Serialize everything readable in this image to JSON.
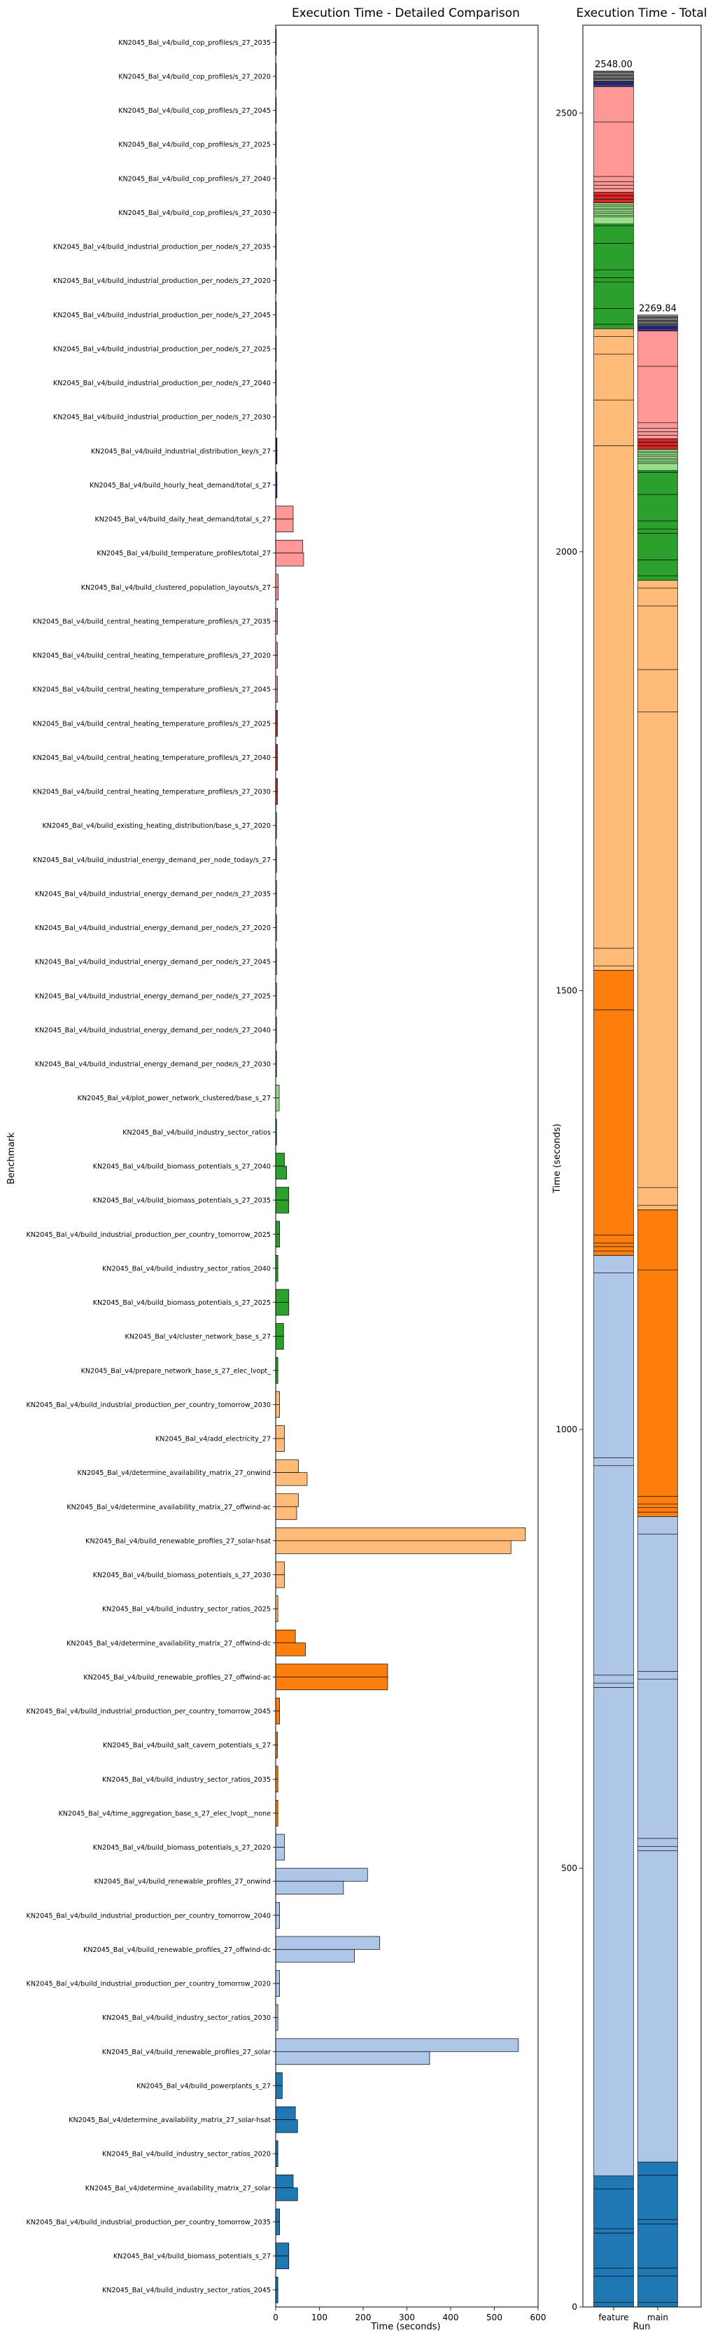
{
  "chart_data": [
    {
      "type": "bar",
      "orientation": "horizontal",
      "title": "Execution Time - Detailed Comparison",
      "xlabel": "Time (seconds)",
      "ylabel": "Benchmark",
      "xlim": [
        0,
        600
      ],
      "xticks": [
        "0",
        "100",
        "200",
        "300",
        "400",
        "500",
        "600"
      ],
      "xtick_values": [
        0,
        100,
        200,
        300,
        400,
        500,
        600
      ],
      "series_names": [
        "feature",
        "main"
      ],
      "rows": [
        {
          "label": "KN2045_Bal_v4/build_cop_profiles/s_27_2035",
          "feature": 1.0,
          "main": 1.0,
          "color": "#d3d3d3"
        },
        {
          "label": "KN2045_Bal_v4/build_cop_profiles/s_27_2020",
          "feature": 1.0,
          "main": 1.0,
          "color": "#d3d3d3"
        },
        {
          "label": "KN2045_Bal_v4/build_cop_profiles/s_27_2045",
          "feature": 1.0,
          "main": 1.0,
          "color": "#d3d3d3"
        },
        {
          "label": "KN2045_Bal_v4/build_cop_profiles/s_27_2025",
          "feature": 1.0,
          "main": 1.0,
          "color": "#d3d3d3"
        },
        {
          "label": "KN2045_Bal_v4/build_cop_profiles/s_27_2040",
          "feature": 1.0,
          "main": 1.0,
          "color": "#d3d3d3"
        },
        {
          "label": "KN2045_Bal_v4/build_cop_profiles/s_27_2030",
          "feature": 1.0,
          "main": 1.0,
          "color": "#d3d3d3"
        },
        {
          "label": "KN2045_Bal_v4/build_industrial_production_per_node/s_27_2035",
          "feature": 1.0,
          "main": 1.0,
          "color": "#c7c7c7"
        },
        {
          "label": "KN2045_Bal_v4/build_industrial_production_per_node/s_27_2020",
          "feature": 1.0,
          "main": 1.0,
          "color": "#c7c7c7"
        },
        {
          "label": "KN2045_Bal_v4/build_industrial_production_per_node/s_27_2045",
          "feature": 1.0,
          "main": 1.0,
          "color": "#c7c7c7"
        },
        {
          "label": "KN2045_Bal_v4/build_industrial_production_per_node/s_27_2025",
          "feature": 1.0,
          "main": 1.0,
          "color": "#c7c7c7"
        },
        {
          "label": "KN2045_Bal_v4/build_industrial_production_per_node/s_27_2040",
          "feature": 1.0,
          "main": 1.0,
          "color": "#c7c7c7"
        },
        {
          "label": "KN2045_Bal_v4/build_industrial_production_per_node/s_27_2030",
          "feature": 1.0,
          "main": 1.0,
          "color": "#c7c7c7"
        },
        {
          "label": "KN2045_Bal_v4/build_industrial_distribution_key/s_27",
          "feature": 3.0,
          "main": 3.0,
          "color": "#2c2a78"
        },
        {
          "label": "KN2045_Bal_v4/build_hourly_heat_demand/total_s_27",
          "feature": 3.0,
          "main": 3.0,
          "color": "#3a3a8c"
        },
        {
          "label": "KN2045_Bal_v4/build_daily_heat_demand/total_s_27",
          "feature": 40.0,
          "main": 40.0,
          "color": "#ff9896"
        },
        {
          "label": "KN2045_Bal_v4/build_temperature_profiles/total_27",
          "feature": 62.0,
          "main": 64.0,
          "color": "#ff9896"
        },
        {
          "label": "KN2045_Bal_v4/build_clustered_population_layouts/s_27",
          "feature": 6.0,
          "main": 6.0,
          "color": "#ff9896"
        },
        {
          "label": "KN2045_Bal_v4/build_central_heating_temperature_profiles/s_27_2035",
          "feature": 4.0,
          "main": 4.0,
          "color": "#ff9896"
        },
        {
          "label": "KN2045_Bal_v4/build_central_heating_temperature_profiles/s_27_2020",
          "feature": 4.0,
          "main": 4.0,
          "color": "#ff9896"
        },
        {
          "label": "KN2045_Bal_v4/build_central_heating_temperature_profiles/s_27_2045",
          "feature": 4.0,
          "main": 4.0,
          "color": "#ff9896"
        },
        {
          "label": "KN2045_Bal_v4/build_central_heating_temperature_profiles/s_27_2025",
          "feature": 4.0,
          "main": 4.0,
          "color": "#d62728"
        },
        {
          "label": "KN2045_Bal_v4/build_central_heating_temperature_profiles/s_27_2040",
          "feature": 4.0,
          "main": 4.0,
          "color": "#d62728"
        },
        {
          "label": "KN2045_Bal_v4/build_central_heating_temperature_profiles/s_27_2030",
          "feature": 4.0,
          "main": 4.0,
          "color": "#d62728"
        },
        {
          "label": "KN2045_Bal_v4/build_existing_heating_distribution/base_s_27_2020",
          "feature": 2.0,
          "main": 2.0,
          "color": "#98df8a"
        },
        {
          "label": "KN2045_Bal_v4/build_industrial_energy_demand_per_node_today/s_27",
          "feature": 2.0,
          "main": 2.0,
          "color": "#98df8a"
        },
        {
          "label": "KN2045_Bal_v4/build_industrial_energy_demand_per_node/s_27_2035",
          "feature": 2.0,
          "main": 2.0,
          "color": "#98df8a"
        },
        {
          "label": "KN2045_Bal_v4/build_industrial_energy_demand_per_node/s_27_2020",
          "feature": 2.0,
          "main": 2.0,
          "color": "#98df8a"
        },
        {
          "label": "KN2045_Bal_v4/build_industrial_energy_demand_per_node/s_27_2045",
          "feature": 2.0,
          "main": 2.0,
          "color": "#98df8a"
        },
        {
          "label": "KN2045_Bal_v4/build_industrial_energy_demand_per_node/s_27_2025",
          "feature": 2.0,
          "main": 2.0,
          "color": "#98df8a"
        },
        {
          "label": "KN2045_Bal_v4/build_industrial_energy_demand_per_node/s_27_2040",
          "feature": 2.0,
          "main": 2.0,
          "color": "#98df8a"
        },
        {
          "label": "KN2045_Bal_v4/build_industrial_energy_demand_per_node/s_27_2030",
          "feature": 2.0,
          "main": 2.0,
          "color": "#98df8a"
        },
        {
          "label": "KN2045_Bal_v4/plot_power_network_clustered/base_s_27",
          "feature": 8.0,
          "main": 8.0,
          "color": "#98df8a"
        },
        {
          "label": "KN2045_Bal_v4/build_industry_sector_ratios",
          "feature": 2.0,
          "main": 2.0,
          "color": "#2ca02c"
        },
        {
          "label": "KN2045_Bal_v4/build_biomass_potentials_s_27_2040",
          "feature": 20.0,
          "main": 25.0,
          "color": "#2ca02c"
        },
        {
          "label": "KN2045_Bal_v4/build_biomass_potentials_s_27_2035",
          "feature": 30.0,
          "main": 30.0,
          "color": "#2ca02c"
        },
        {
          "label": "KN2045_Bal_v4/build_industrial_production_per_country_tomorrow_2025",
          "feature": 9.0,
          "main": 9.0,
          "color": "#2ca02c"
        },
        {
          "label": "KN2045_Bal_v4/build_industry_sector_ratios_2040",
          "feature": 5.0,
          "main": 5.0,
          "color": "#2ca02c"
        },
        {
          "label": "KN2045_Bal_v4/build_biomass_potentials_s_27_2025",
          "feature": 30.0,
          "main": 30.0,
          "color": "#2ca02c"
        },
        {
          "label": "KN2045_Bal_v4/cluster_network_base_s_27",
          "feature": 18.0,
          "main": 18.0,
          "color": "#2ca02c"
        },
        {
          "label": "KN2045_Bal_v4/prepare_network_base_s_27_elec_lvopt_",
          "feature": 5.0,
          "main": 5.0,
          "color": "#2ca02c"
        },
        {
          "label": "KN2045_Bal_v4/build_industrial_production_per_country_tomorrow_2030",
          "feature": 9.0,
          "main": 9.0,
          "color": "#ffbb78"
        },
        {
          "label": "KN2045_Bal_v4/add_electricity_27",
          "feature": 20.0,
          "main": 20.0,
          "color": "#ffbb78"
        },
        {
          "label": "KN2045_Bal_v4/determine_availability_matrix_27_onwind",
          "feature": 52.0,
          "main": 72.0,
          "color": "#ffbb78"
        },
        {
          "label": "KN2045_Bal_v4/determine_availability_matrix_27_offwind-ac",
          "feature": 52.0,
          "main": 48.0,
          "color": "#ffbb78"
        },
        {
          "label": "KN2045_Bal_v4/build_renewable_profiles_27_solar-hsat",
          "feature": 571.0,
          "main": 538.0,
          "color": "#ffbb78"
        },
        {
          "label": "KN2045_Bal_v4/build_biomass_potentials_s_27_2030",
          "feature": 20.0,
          "main": 20.0,
          "color": "#ffbb78"
        },
        {
          "label": "KN2045_Bal_v4/build_industry_sector_ratios_2025",
          "feature": 5.0,
          "main": 5.0,
          "color": "#ffbb78"
        },
        {
          "label": "KN2045_Bal_v4/determine_availability_matrix_27_offwind-dc",
          "feature": 45.0,
          "main": 68.0,
          "color": "#ff7f0e"
        },
        {
          "label": "KN2045_Bal_v4/build_renewable_profiles_27_offwind-ac",
          "feature": 256.0,
          "main": 256.0,
          "color": "#ff7f0e"
        },
        {
          "label": "KN2045_Bal_v4/build_industrial_production_per_country_tomorrow_2045",
          "feature": 9.0,
          "main": 9.0,
          "color": "#ff7f0e"
        },
        {
          "label": "KN2045_Bal_v4/build_salt_cavern_potentials_s_27",
          "feature": 4.0,
          "main": 4.0,
          "color": "#ff7f0e"
        },
        {
          "label": "KN2045_Bal_v4/build_industry_sector_ratios_2035",
          "feature": 5.0,
          "main": 5.0,
          "color": "#ff7f0e"
        },
        {
          "label": "KN2045_Bal_v4/time_aggregation_base_s_27_elec_lvopt__none",
          "feature": 5.0,
          "main": 5.0,
          "color": "#ff7f0e"
        },
        {
          "label": "KN2045_Bal_v4/build_biomass_potentials_s_27_2020",
          "feature": 20.0,
          "main": 20.0,
          "color": "#aec7e8"
        },
        {
          "label": "KN2045_Bal_v4/build_renewable_profiles_27_onwind",
          "feature": 210.0,
          "main": 155.0,
          "color": "#aec7e8"
        },
        {
          "label": "KN2045_Bal_v4/build_industrial_production_per_country_tomorrow_2040",
          "feature": 9.0,
          "main": 9.0,
          "color": "#aec7e8"
        },
        {
          "label": "KN2045_Bal_v4/build_renewable_profiles_27_offwind-dc",
          "feature": 238.0,
          "main": 180.0,
          "color": "#aec7e8"
        },
        {
          "label": "KN2045_Bal_v4/build_industrial_production_per_country_tomorrow_2020",
          "feature": 9.0,
          "main": 9.0,
          "color": "#aec7e8"
        },
        {
          "label": "KN2045_Bal_v4/build_industry_sector_ratios_2030",
          "feature": 5.0,
          "main": 5.0,
          "color": "#aec7e8"
        },
        {
          "label": "KN2045_Bal_v4/build_renewable_profiles_27_solar",
          "feature": 555.0,
          "main": 352.0,
          "color": "#aec7e8"
        },
        {
          "label": "KN2045_Bal_v4/build_powerplants_s_27",
          "feature": 15.0,
          "main": 15.0,
          "color": "#1f77b4"
        },
        {
          "label": "KN2045_Bal_v4/determine_availability_matrix_27_solar-hsat",
          "feature": 45.0,
          "main": 50.0,
          "color": "#1f77b4"
        },
        {
          "label": "KN2045_Bal_v4/build_industry_sector_ratios_2020",
          "feature": 5.0,
          "main": 5.0,
          "color": "#1f77b4"
        },
        {
          "label": "KN2045_Bal_v4/determine_availability_matrix_27_solar",
          "feature": 40.0,
          "main": 50.0,
          "color": "#1f77b4"
        },
        {
          "label": "KN2045_Bal_v4/build_industrial_production_per_country_tomorrow_2035",
          "feature": 9.0,
          "main": 9.0,
          "color": "#1f77b4"
        },
        {
          "label": "KN2045_Bal_v4/build_biomass_potentials_s_27",
          "feature": 30.0,
          "main": 30.0,
          "color": "#1f77b4"
        },
        {
          "label": "KN2045_Bal_v4/build_industry_sector_ratios_2045",
          "feature": 5.0,
          "main": 5.0,
          "color": "#1f77b4"
        }
      ]
    },
    {
      "type": "bar",
      "stacked": true,
      "title": "Execution Time - Total",
      "xlabel": "Run",
      "ylabel": "Time (seconds)",
      "categories": [
        "feature",
        "main"
      ],
      "totals": [
        2548.0,
        2269.84
      ],
      "total_labels": [
        "2548.00",
        "2269.84"
      ],
      "ylim": [
        0,
        2600
      ],
      "yticks": [
        "0",
        "500",
        "1000",
        "1500",
        "2000",
        "2500"
      ],
      "ytick_values": [
        0,
        500,
        1000,
        1500,
        2000,
        2500
      ]
    }
  ]
}
